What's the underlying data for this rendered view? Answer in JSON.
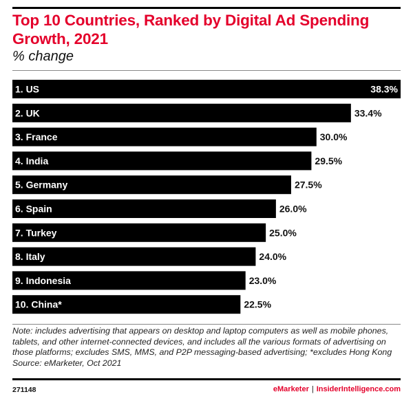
{
  "chart_data": {
    "type": "bar",
    "orientation": "horizontal",
    "title": "Top 10 Countries, Ranked by Digital Ad Spending Growth, 2021",
    "subtitle": "% change",
    "xlabel": "",
    "ylabel": "",
    "grid": false,
    "legend": "none",
    "xlim": [
      0,
      38.3
    ],
    "categories": [
      "1. US",
      "2. UK",
      "3. France",
      "4. India",
      "5. Germany",
      "6. Spain",
      "7. Turkey",
      "8. Italy",
      "9. Indonesia",
      "10. China*"
    ],
    "values": [
      38.3,
      33.4,
      30.0,
      29.5,
      27.5,
      26.0,
      25.0,
      24.0,
      23.0,
      22.5
    ],
    "value_labels": [
      "38.3%",
      "33.4%",
      "30.0%",
      "29.5%",
      "27.5%",
      "26.0%",
      "25.0%",
      "24.0%",
      "23.0%",
      "22.5%"
    ],
    "bar_color": "#000000"
  },
  "header": {
    "title": "Top 10 Countries, Ranked by Digital Ad Spending Growth, 2021",
    "subtitle": "% change",
    "title_color": "#e4002b"
  },
  "note": {
    "text": "Note: includes advertising that appears on desktop and laptop computers as well as mobile phones, tablets, and other internet-connected devices, and includes all the various formats of advertising on those platforms; excludes SMS, MMS, and P2P messaging-based advertising; *excludes Hong Kong",
    "source": "Source: eMarketer, Oct 2021"
  },
  "footer": {
    "chart_id": "271148",
    "brand_left": "eMarketer",
    "separator": "|",
    "brand_right": "InsiderIntelligence.com",
    "brand_color": "#e4002b"
  }
}
